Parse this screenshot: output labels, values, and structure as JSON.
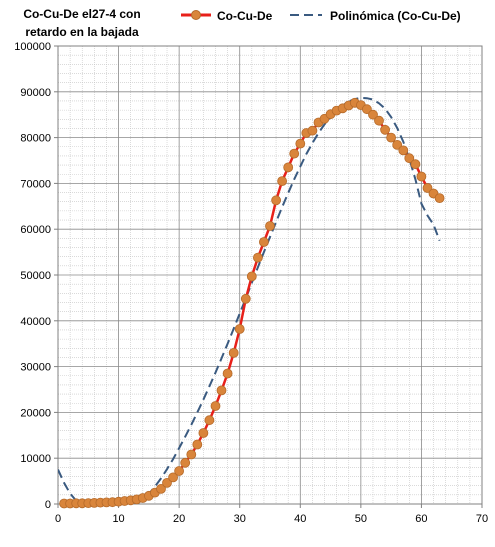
{
  "chart_data": {
    "type": "line",
    "title": "Co-Cu-De el27-4 con retardo en la bajada",
    "title_lines": [
      "Co-Cu-De el27-4 con",
      "retardo en la bajada"
    ],
    "xlabel": "",
    "ylabel": "",
    "xlim": [
      0,
      70
    ],
    "ylim": [
      0,
      100000
    ],
    "x_ticks": [
      0,
      10,
      20,
      30,
      40,
      50,
      60,
      70
    ],
    "y_ticks": [
      0,
      10000,
      20000,
      30000,
      40000,
      50000,
      60000,
      70000,
      80000,
      90000,
      100000
    ],
    "grid": "major and minor",
    "legend_placement": "top",
    "series": [
      {
        "name": "Co-Cu-De",
        "style": "line-with-markers",
        "line_color": "#e8201a",
        "marker_color": "#d9853b",
        "marker_edge": "#b56a2a",
        "x": [
          1,
          2,
          3,
          4,
          5,
          6,
          7,
          8,
          9,
          10,
          11,
          12,
          13,
          14,
          15,
          16,
          17,
          18,
          19,
          20,
          21,
          22,
          23,
          24,
          25,
          26,
          27,
          28,
          29,
          30,
          31,
          32,
          33,
          34,
          35,
          36,
          37,
          38,
          39,
          40,
          41,
          42,
          43,
          44,
          45,
          46,
          47,
          48,
          49,
          50,
          51,
          52,
          53,
          54,
          55,
          56,
          57,
          58,
          59,
          60,
          61,
          62,
          63
        ],
        "y": [
          100,
          100,
          150,
          150,
          200,
          250,
          300,
          350,
          400,
          500,
          650,
          800,
          1000,
          1300,
          1800,
          2500,
          3300,
          4600,
          5800,
          7200,
          9000,
          10800,
          13000,
          15500,
          18300,
          21400,
          24800,
          28500,
          33000,
          38200,
          44800,
          49700,
          53800,
          57200,
          60700,
          66300,
          70500,
          73500,
          76500,
          78700,
          81000,
          81500,
          83300,
          84100,
          85100,
          85900,
          86400,
          87000,
          87600,
          87100,
          86200,
          85000,
          83700,
          81700,
          80000,
          78400,
          77200,
          75500,
          74200,
          71500,
          69000,
          67800,
          66800
        ]
      },
      {
        "name": "Polinómica (Co-Cu-De)",
        "style": "dashed",
        "line_color": "#3a5a80",
        "x": [
          0,
          1,
          2,
          3,
          4,
          5,
          6,
          7,
          8,
          9,
          10,
          11,
          12,
          13,
          14,
          15,
          16,
          17,
          18,
          19,
          20,
          21,
          22,
          23,
          24,
          25,
          26,
          27,
          28,
          29,
          30,
          31,
          32,
          33,
          34,
          35,
          36,
          37,
          38,
          39,
          40,
          41,
          42,
          43,
          44,
          45,
          46,
          47,
          48,
          49,
          50,
          51,
          52,
          53,
          54,
          55,
          56,
          57,
          58,
          59,
          60,
          61,
          62,
          63
        ],
        "y": [
          7500,
          4600,
          2300,
          700,
          -400,
          -900,
          -1100,
          -1100,
          -900,
          -650,
          -350,
          -150,
          0,
          300,
          900,
          2200,
          3800,
          5600,
          7600,
          9800,
          12200,
          14700,
          17300,
          20000,
          22800,
          25700,
          28700,
          31800,
          35000,
          38300,
          41600,
          44900,
          48300,
          51700,
          55000,
          58300,
          61600,
          64800,
          67900,
          70900,
          73700,
          76400,
          78800,
          81000,
          82900,
          84500,
          85900,
          87000,
          87900,
          88400,
          88700,
          88600,
          88300,
          87500,
          86300,
          84500,
          82100,
          79100,
          75400,
          70900,
          65600,
          63000,
          61000,
          57500
        ]
      }
    ]
  }
}
